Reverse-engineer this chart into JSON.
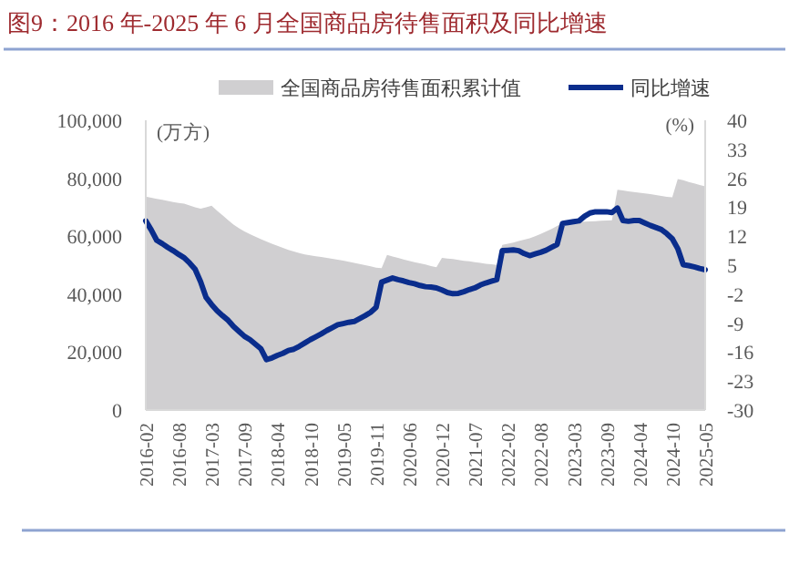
{
  "chart_data": {
    "type": "line",
    "title": "图9：2016 年-2025 年 6 月全国商品房待售面积及同比增速",
    "ylabel": "(万方)",
    "y2label": "(%)",
    "categories": [
      "2016-02",
      null,
      null,
      null,
      null,
      null,
      "2016-08",
      null,
      null,
      null,
      null,
      null,
      "2017-03",
      null,
      null,
      null,
      null,
      null,
      "2017-09",
      null,
      null,
      null,
      null,
      null,
      "2018-04",
      null,
      null,
      null,
      null,
      null,
      "2018-10",
      null,
      null,
      null,
      null,
      null,
      "2019-05",
      null,
      null,
      null,
      null,
      null,
      "2019-11",
      null,
      null,
      null,
      null,
      null,
      "2020-06",
      null,
      null,
      null,
      null,
      null,
      "2020-12",
      null,
      null,
      null,
      null,
      null,
      "2021-07",
      null,
      null,
      null,
      null,
      null,
      "2022-02",
      null,
      null,
      null,
      null,
      null,
      "2022-08",
      null,
      null,
      null,
      null,
      null,
      "2023-03",
      null,
      null,
      null,
      null,
      null,
      "2023-09",
      null,
      null,
      null,
      null,
      null,
      "2024-04",
      null,
      null,
      null,
      null,
      null,
      "2024-10",
      null,
      null,
      null,
      null,
      null,
      "2025-05"
    ],
    "series": [
      {
        "name": "全国商品房待售面积累计值",
        "type": "area",
        "color": "#d0cfd1",
        "values": [
          73700,
          73300,
          72900,
          72600,
          72200,
          71800,
          71500,
          71200,
          70600,
          70000,
          69500,
          70000,
          70500,
          68800,
          67200,
          65600,
          64000,
          62700,
          61600,
          60700,
          59800,
          59000,
          58200,
          57400,
          56700,
          56000,
          55300,
          54700,
          54200,
          53700,
          53400,
          53100,
          52800,
          52500,
          52200,
          51900,
          51600,
          51200,
          50800,
          50400,
          50000,
          49600,
          49100,
          49000,
          53500,
          53000,
          52500,
          52000,
          51500,
          51000,
          50600,
          50200,
          49700,
          49300,
          52500,
          52300,
          52100,
          51800,
          51500,
          51300,
          51000,
          50800,
          50500,
          50300,
          50100,
          57000,
          57400,
          57800,
          58300,
          58800,
          59300,
          60000,
          60800,
          61600,
          62500,
          63500,
          64600,
          64700,
          64800,
          64900,
          65000,
          65100,
          65200,
          65300,
          65400,
          65500,
          76000,
          75800,
          75500,
          75200,
          75000,
          74800,
          74500,
          74200,
          73900,
          73600,
          73400,
          79700,
          79300,
          78700,
          78200,
          77700,
          77200
        ]
      },
      {
        "name": "同比增速",
        "type": "line",
        "axis": "y2",
        "color": "#0a2d8c",
        "values": [
          15.7,
          13.5,
          11.0,
          10.2,
          9.3,
          8.5,
          7.6,
          6.8,
          5.5,
          4.0,
          1.0,
          -2.8,
          -4.5,
          -6.0,
          -7.2,
          -8.3,
          -9.8,
          -11.0,
          -12.2,
          -13.0,
          -14.1,
          -15.2,
          -17.8,
          -17.4,
          -16.8,
          -16.3,
          -15.6,
          -15.3,
          -14.6,
          -13.8,
          -13.0,
          -12.3,
          -11.6,
          -10.8,
          -10.1,
          -9.4,
          -9.1,
          -8.8,
          -8.6,
          -7.9,
          -7.2,
          -6.4,
          -5.2,
          0.9,
          1.4,
          1.9,
          1.5,
          1.2,
          0.8,
          0.5,
          0.1,
          -0.2,
          -0.3,
          -0.5,
          -1.0,
          -1.6,
          -1.9,
          -1.8,
          -1.4,
          -0.9,
          -0.5,
          0.2,
          0.7,
          1.1,
          1.5,
          8.5,
          8.6,
          8.7,
          8.5,
          7.8,
          7.3,
          7.7,
          8.1,
          8.6,
          9.3,
          10.0,
          15.1,
          15.3,
          15.5,
          15.7,
          16.8,
          17.6,
          17.9,
          17.9,
          17.9,
          17.7,
          18.8,
          15.8,
          15.6,
          15.8,
          15.8,
          15.2,
          14.6,
          14.1,
          13.6,
          12.6,
          11.4,
          9.0,
          5.1,
          4.9,
          4.6,
          4.2,
          3.9
        ]
      }
    ],
    "ylim": [
      0,
      100000
    ],
    "yticks": [
      0,
      {
        "value": 20000,
        "label": "20,000"
      },
      {
        "value": 40000,
        "label": "40,000"
      },
      {
        "value": 60000,
        "label": "60,000"
      },
      {
        "value": 80000,
        "label": "80,000"
      },
      {
        "value": 100000,
        "label": "100,000"
      }
    ],
    "y2lim": [
      -30,
      40
    ],
    "y2ticks": [
      -30,
      -23,
      -16,
      -9,
      -2,
      5,
      12,
      19,
      26,
      33,
      40
    ],
    "legend": "top",
    "grid": false,
    "marker": "none",
    "line_style": "solid"
  }
}
